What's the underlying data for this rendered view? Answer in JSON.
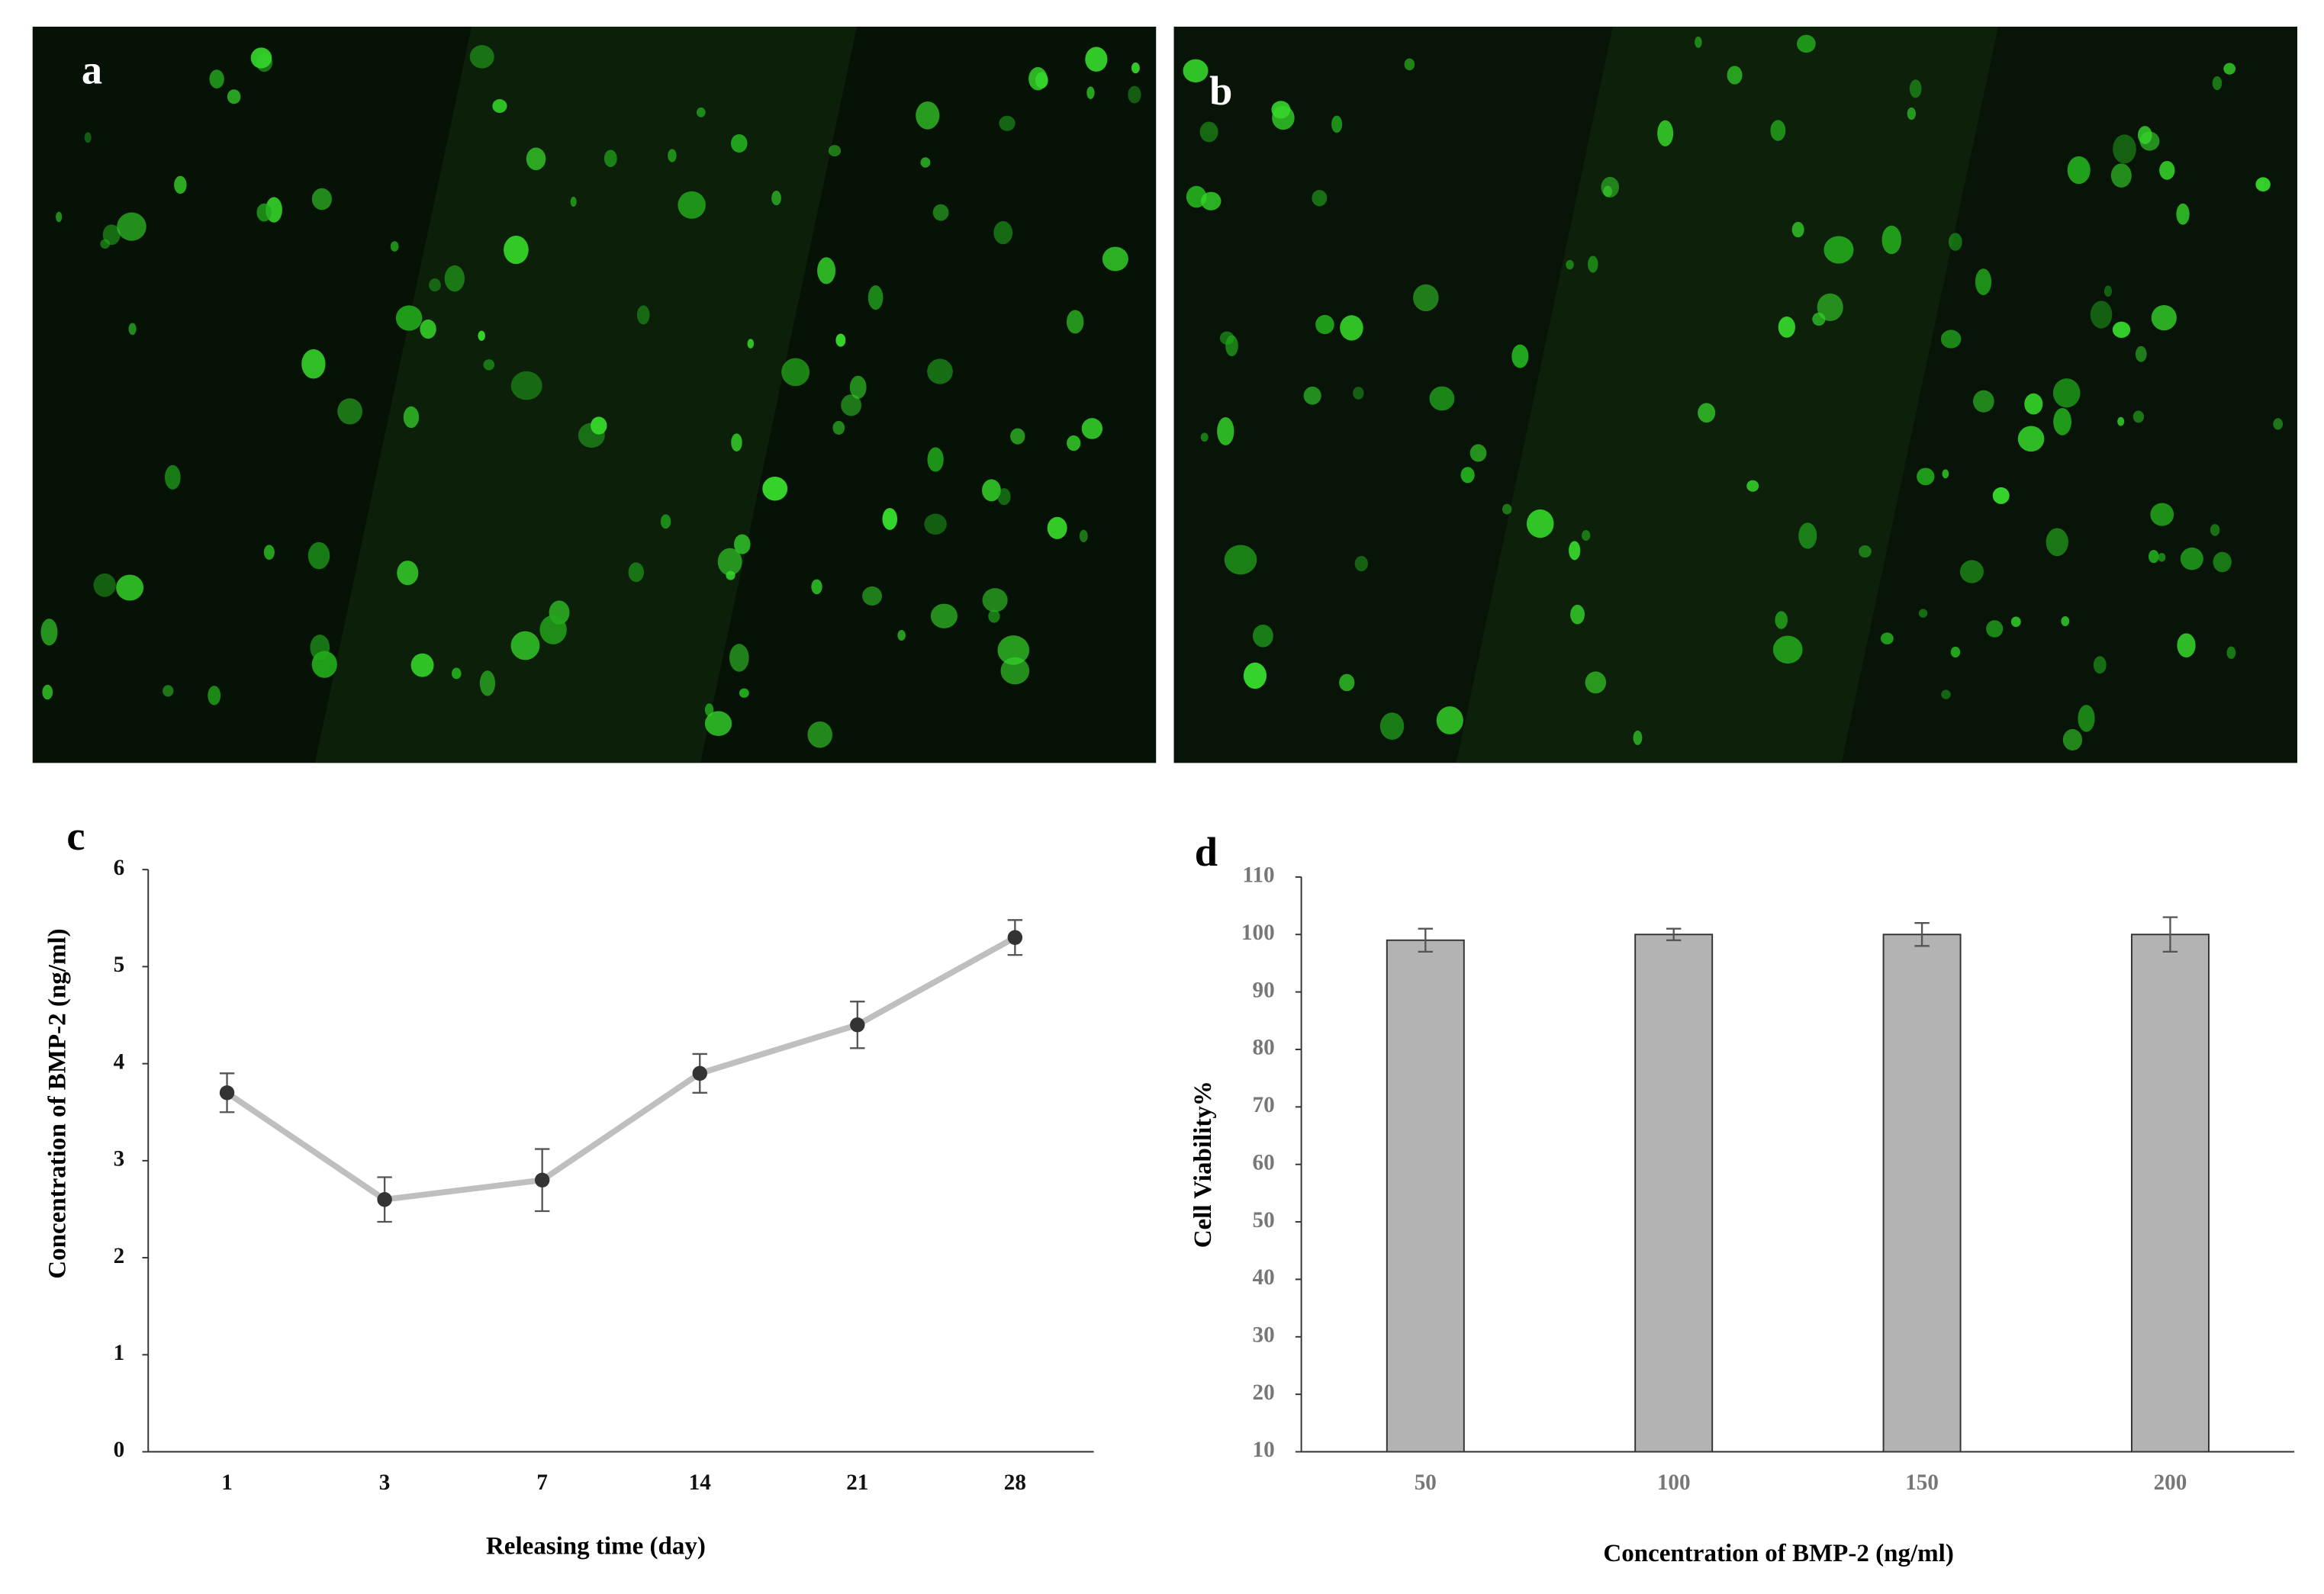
{
  "images": [
    {
      "label": "a"
    },
    {
      "label": "b"
    }
  ],
  "chart_data": [
    {
      "type": "line",
      "label": "c",
      "x_label": "Releasing time (day)",
      "y_label": "Concentration of BMP-2 (ng/ml)",
      "categories": [
        "1",
        "3",
        "7",
        "14",
        "21",
        "28"
      ],
      "series": [
        {
          "color": "#bfbfbf",
          "marker_color": "#333333",
          "values": [
            3.7,
            2.6,
            2.8,
            3.9,
            4.4,
            5.3
          ],
          "errors": [
            0.2,
            0.23,
            0.32,
            0.2,
            0.24,
            0.18
          ]
        }
      ],
      "ylim": [
        0,
        6
      ],
      "yticks": [
        0,
        1,
        2,
        3,
        4,
        5,
        6
      ]
    },
    {
      "type": "bar",
      "label": "d",
      "x_label": "Concentration of BMP-2 (ng/ml)",
      "y_label": "Cell Viability%",
      "categories": [
        "50",
        "100",
        "150",
        "200"
      ],
      "series": [
        {
          "color": "#b3b3b3",
          "values": [
            99,
            100,
            100,
            100
          ],
          "errors": [
            2,
            1,
            2,
            3
          ]
        }
      ],
      "ylim": [
        10,
        110
      ],
      "yticks": [
        10,
        20,
        30,
        40,
        50,
        60,
        70,
        80,
        90,
        100,
        110
      ]
    }
  ]
}
